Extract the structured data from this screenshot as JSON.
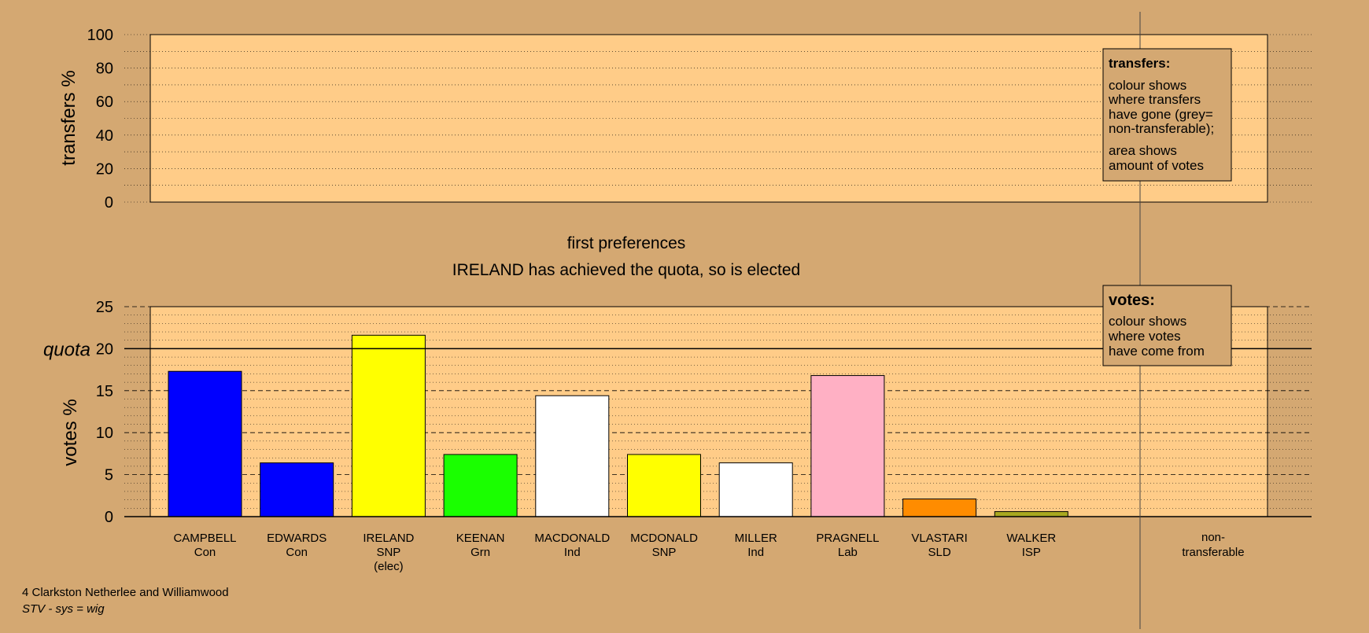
{
  "chart_data": [
    {
      "type": "bar",
      "panel": "transfers",
      "title": "",
      "xlabel": "",
      "ylabel": "transfers %",
      "ylim": [
        0,
        100
      ],
      "yticks": [
        0,
        20,
        40,
        60,
        80,
        100
      ],
      "grid": true,
      "categories": [],
      "values": [],
      "legend": {
        "placement": "top-right",
        "title": "transfers:",
        "paragraphs": [
          [
            "colour shows",
            "where transfers",
            "have gone (grey=",
            "non-transferable);"
          ],
          [
            "area shows",
            "amount of votes"
          ]
        ]
      }
    },
    {
      "type": "bar",
      "panel": "votes",
      "title": "first preferences",
      "subtitle": "IRELAND has achieved the quota, so is elected",
      "xlabel": "",
      "ylabel": "votes %",
      "quota_label": "quota",
      "quota": 20,
      "ylim": [
        0,
        25
      ],
      "yticks": [
        0,
        5,
        10,
        15,
        20,
        25
      ],
      "grid": true,
      "categories": [
        {
          "name": "CAMPBELL",
          "party": "Con",
          "note": "",
          "value": 17.3,
          "color": "#0000FF"
        },
        {
          "name": "EDWARDS",
          "party": "Con",
          "note": "",
          "value": 6.4,
          "color": "#0000FF"
        },
        {
          "name": "IRELAND",
          "party": "SNP",
          "note": "(elec)",
          "value": 21.6,
          "color": "#FFFF00"
        },
        {
          "name": "KEENAN",
          "party": "Grn",
          "note": "",
          "value": 7.4,
          "color": "#1AFF00"
        },
        {
          "name": "MACDONALD",
          "party": "Ind",
          "note": "",
          "value": 14.4,
          "color": "#FFFFFF"
        },
        {
          "name": "MCDONALD",
          "party": "SNP",
          "note": "",
          "value": 7.4,
          "color": "#FFFF00"
        },
        {
          "name": "MILLER",
          "party": "Ind",
          "note": "",
          "value": 6.4,
          "color": "#FFFFFF"
        },
        {
          "name": "PRAGNELL",
          "party": "Lab",
          "note": "",
          "value": 16.8,
          "color": "#FFB0C4"
        },
        {
          "name": "VLASTARI",
          "party": "SLD",
          "note": "",
          "value": 2.1,
          "color": "#FF8C00"
        },
        {
          "name": "WALKER",
          "party": "ISP",
          "note": "",
          "value": 0.6,
          "color": "#A8A820"
        }
      ],
      "non_transferable": {
        "line1": "non-",
        "line2": "transferable"
      },
      "legend": {
        "placement": "top-right",
        "title": "votes:",
        "lines": [
          "colour shows",
          "where votes",
          "have come from"
        ]
      }
    }
  ],
  "footer": {
    "ward": "4 Clarkston Netherlee and Williamwood",
    "system": "STV - sys = wig"
  },
  "colors": {
    "background": "#D4A872",
    "panel": "#FFCC88",
    "legend_box": "#D4A872"
  }
}
